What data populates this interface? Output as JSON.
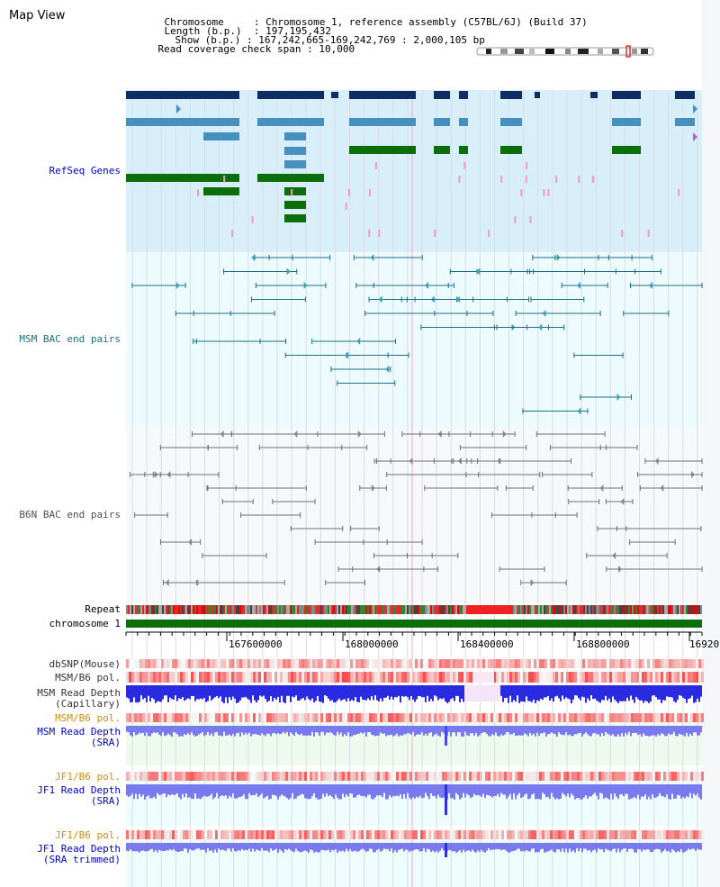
{
  "app": {
    "title": "Map View"
  },
  "header": {
    "chromosome_label": "Chromosome",
    "chromosome_value": "Chromosome 1, reference assembly (C57BL/6J) (Build 37)",
    "length_label": "Length (b.p.)",
    "length_value": "197,195,432",
    "show_label": "Show (b.p.)",
    "show_value": "167,242,665-169,242,769 : 2,000,105 bp",
    "coverage_label": "Read coverage check span",
    "coverage_value": "10,000"
  },
  "tracks": {
    "refseq": "RefSeq Genes",
    "msm_bac": "MSM BAC end pairs",
    "b6n_bac": "B6N BAC end pairs",
    "repeat": "Repeat",
    "chromosome": "chromosome 1",
    "dbsnp": "dbSNP(Mouse)",
    "msm_b6_pol_1": "MSM/B6 pol.",
    "msm_rd_cap_1": "MSM Read Depth",
    "msm_rd_cap_2": "(Capillary)",
    "msm_b6_pol_2": "MSM/B6 pol.",
    "msm_rd_sra_1": "MSM Read Depth",
    "msm_rd_sra_2": "(SRA)",
    "jf1_b6_pol_1": "JF1/B6 pol.",
    "jf1_rd_sra_1": "JF1 Read Depth",
    "jf1_rd_sra_2": "(SRA)",
    "jf1_b6_pol_2": "JF1/B6 pol.",
    "jf1_rd_trim_1": "JF1 Read Depth",
    "jf1_rd_trim_2": "(SRA trimmed)"
  },
  "axis": {
    "ticks": [
      "167600000",
      "168000000",
      "168400000",
      "168800000",
      "16920"
    ]
  },
  "colors": {
    "refseq_bg": "#d8effa",
    "bac_bg": "#eefbfd",
    "refseq_dark": "#0e2d62",
    "refseq_mid": "#4690bf",
    "refseq_green": "#0b6e0b",
    "msm_line": "#1a6f8a",
    "b6n_line": "#707070",
    "chromosome_bar": "#0a6e0a",
    "label_blue": "#0000cc",
    "label_orange": "#d88a00",
    "depth_blue": "#2a2ae0",
    "depth_light": "#7a7aef"
  }
}
